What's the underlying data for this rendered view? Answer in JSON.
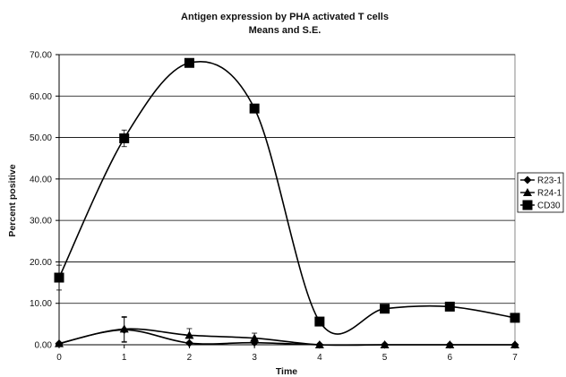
{
  "chart_data": {
    "type": "line",
    "title": "Antigen expression by PHA activated T cells",
    "subtitle": "Means and S.E.",
    "xlabel": "Time",
    "ylabel": "Percent positive",
    "x": [
      0,
      1,
      2,
      3,
      4,
      5,
      6,
      7
    ],
    "xlim": [
      0,
      7
    ],
    "ylim": [
      0,
      70
    ],
    "y_ticks": [
      "0.00",
      "10.00",
      "20.00",
      "30.00",
      "40.00",
      "50.00",
      "60.00",
      "70.00"
    ],
    "x_ticks": [
      "0",
      "1",
      "2",
      "3",
      "4",
      "5",
      "6",
      "7"
    ],
    "grid": "horizontal",
    "legend_position": "right",
    "smooth": true,
    "series": [
      {
        "name": "R23-1",
        "marker": "diamond",
        "values": [
          0.3,
          3.6,
          0.4,
          0.5,
          0.0,
          0.0,
          0.0,
          0.0
        ],
        "error": [
          0,
          3.0,
          0,
          0,
          0,
          0,
          0,
          0
        ]
      },
      {
        "name": "R24-1",
        "marker": "triangle",
        "values": [
          0.3,
          3.8,
          2.3,
          1.6,
          0.0,
          0.0,
          0.0,
          0.0
        ],
        "error": [
          0,
          3.0,
          1.6,
          1.2,
          0,
          0,
          0,
          0
        ]
      },
      {
        "name": "CD30",
        "marker": "square",
        "values": [
          16.2,
          49.8,
          68.0,
          57.0,
          5.6,
          8.7,
          9.2,
          6.5
        ],
        "error": [
          3.0,
          2.0,
          0.5,
          0.5,
          0.5,
          0.3,
          0.3,
          0.3
        ]
      }
    ]
  }
}
